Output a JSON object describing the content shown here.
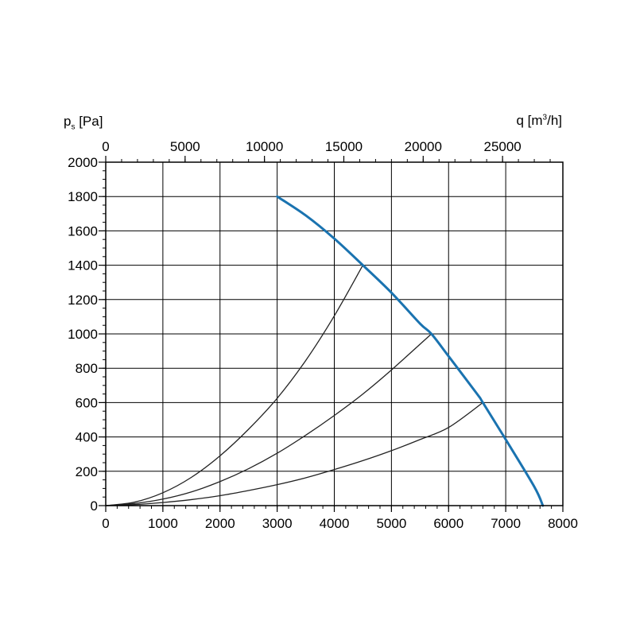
{
  "chart_data": {
    "type": "line",
    "title": "",
    "ylabel_main": "p",
    "ylabel_sub": "s",
    "ylabel_unit": " [Pa]",
    "xlabel_top_main": "q [m",
    "xlabel_top_sup": "3",
    "xlabel_top_end": "/h]",
    "x_bottom_ticks": [
      "0",
      "1000",
      "2000",
      "3000",
      "4000",
      "5000",
      "6000",
      "7000",
      "8000"
    ],
    "x_top_ticks": [
      "0",
      "5000",
      "10000",
      "15000",
      "20000",
      "25000"
    ],
    "y_ticks": [
      "0",
      "200",
      "400",
      "600",
      "800",
      "1000",
      "1200",
      "1400",
      "1600",
      "1800",
      "2000"
    ],
    "xlim": [
      0,
      8000
    ],
    "ylim": [
      0,
      2000
    ],
    "top_axis_factor": 3.6,
    "grid": true,
    "series": [
      {
        "kind": "fan_curve",
        "color": "#1a73b0",
        "x": [
          3000,
          3500,
          4000,
          4500,
          5000,
          5500,
          5700,
          6000,
          6500,
          6600,
          7000,
          7500,
          7650
        ],
        "y": [
          1800,
          1690,
          1555,
          1400,
          1240,
          1060,
          1000,
          870,
          650,
          600,
          385,
          110,
          0
        ]
      },
      {
        "kind": "system_curve",
        "color": "#222222",
        "x": [
          0,
          500,
          1000,
          1500,
          2000,
          2500,
          3000,
          3500,
          4000,
          4500
        ],
        "y": [
          0,
          20,
          75,
          165,
          290,
          445,
          625,
          845,
          1105,
          1400
        ]
      },
      {
        "kind": "system_curve",
        "color": "#222222",
        "x": [
          0,
          500,
          1000,
          1500,
          2000,
          2500,
          3000,
          3500,
          4000,
          4500,
          5000,
          5700
        ],
        "y": [
          0,
          12,
          38,
          80,
          140,
          215,
          305,
          410,
          525,
          650,
          790,
          1000
        ]
      },
      {
        "kind": "system_curve",
        "color": "#222222",
        "x": [
          0,
          500,
          1000,
          1500,
          2000,
          2500,
          3000,
          3500,
          4000,
          4500,
          5000,
          5500,
          6000,
          6600
        ],
        "y": [
          0,
          6,
          18,
          35,
          58,
          88,
          122,
          162,
          210,
          262,
          320,
          385,
          455,
          600
        ]
      }
    ]
  }
}
